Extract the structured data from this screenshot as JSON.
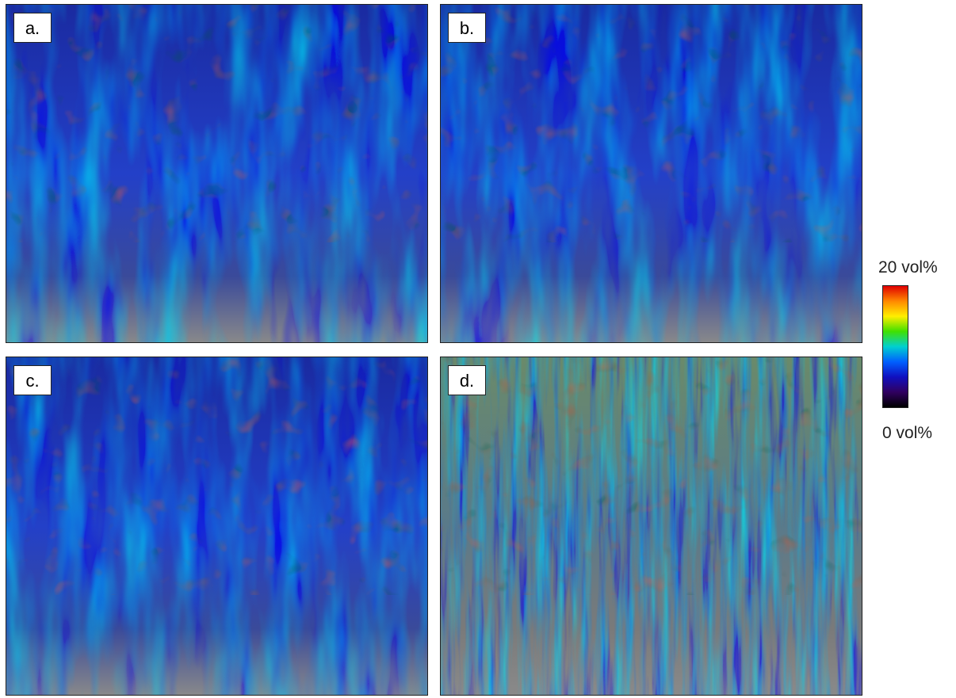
{
  "panels": [
    {
      "label": "a."
    },
    {
      "label": "b."
    },
    {
      "label": "c."
    },
    {
      "label": "d."
    }
  ],
  "colorbar": {
    "max_label": "20 vol%",
    "min_label": "0 vol%"
  }
}
